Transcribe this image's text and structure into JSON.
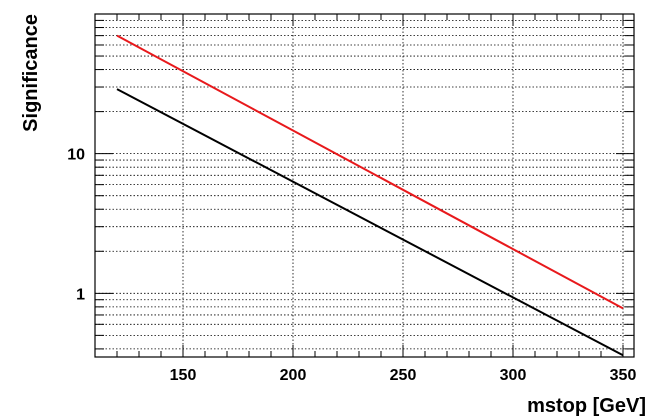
{
  "chart_data": {
    "type": "line",
    "title": "",
    "xlabel": "mstop [GeV]",
    "ylabel": "Significance",
    "xlim": [
      110,
      355
    ],
    "ylim": [
      0.35,
      100
    ],
    "y_scale": "log",
    "grid": true,
    "x_ticks": [
      150,
      200,
      250,
      300,
      350
    ],
    "y_ticks": [
      1,
      10
    ],
    "series": [
      {
        "color": "#e8191c",
        "x": [
          120,
          350
        ],
        "y": [
          70,
          0.78
        ]
      },
      {
        "color": "#000000",
        "x": [
          120,
          350
        ],
        "y": [
          29,
          0.36
        ]
      }
    ]
  }
}
